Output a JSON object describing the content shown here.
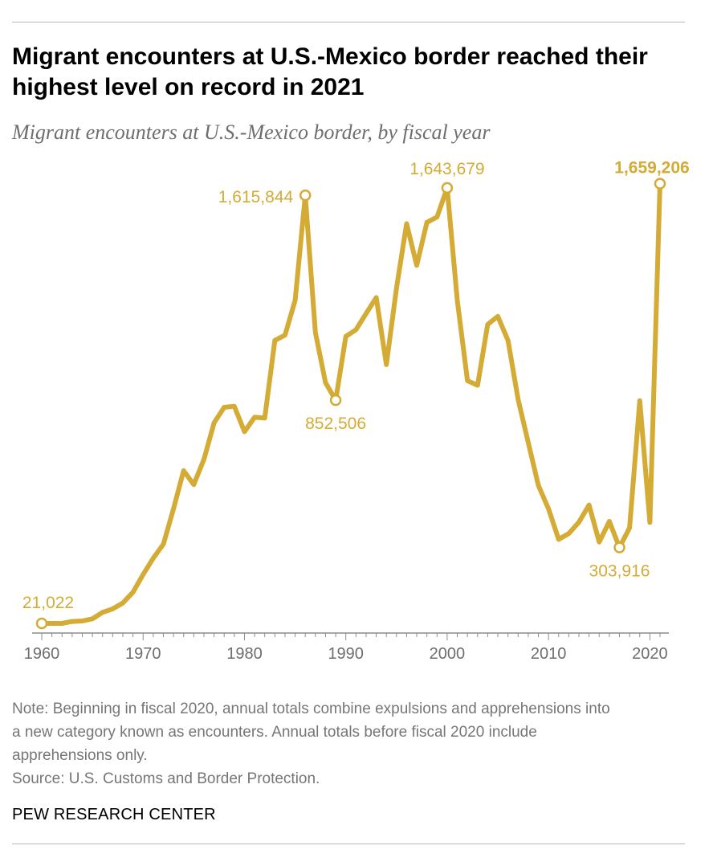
{
  "header": {
    "title": "Migrant encounters at U.S.-Mexico border reached their highest level on record in 2021",
    "subtitle": "Migrant encounters at U.S.-Mexico border, by fiscal year"
  },
  "footer": {
    "note": "Note: Beginning in fiscal 2020, annual totals combine expulsions and apprehensions into a new category known as encounters. Annual totals before fiscal 2020 include apprehensions only.",
    "source": "Source: U.S. Customs and Border Protection.",
    "brand": "PEW RESEARCH CENTER"
  },
  "colors": {
    "line": "#d4ab34",
    "axis": "#8c8c8c",
    "tick_text": "#6e6e6e"
  },
  "chart_data": {
    "type": "line",
    "title": "Migrant encounters at U.S.-Mexico border reached their highest level on record in 2021",
    "subtitle": "Migrant encounters at U.S.-Mexico border, by fiscal year",
    "xlabel": "",
    "ylabel": "",
    "xlim": [
      1960,
      2021
    ],
    "ylim": [
      0,
      1700000
    ],
    "grid": false,
    "legend": "none",
    "x_ticks": [
      1960,
      1970,
      1980,
      1990,
      2000,
      2010,
      2020
    ],
    "x_tick_labels": [
      "1960",
      "1970",
      "1980",
      "1990",
      "2000",
      "2010",
      "2020"
    ],
    "series": [
      {
        "values": [
          [
            1960,
            21022
          ],
          [
            1961,
            21000
          ],
          [
            1962,
            21000
          ],
          [
            1963,
            28000
          ],
          [
            1964,
            30000
          ],
          [
            1965,
            38000
          ],
          [
            1966,
            62000
          ],
          [
            1967,
            75000
          ],
          [
            1968,
            97000
          ],
          [
            1969,
            137000
          ],
          [
            1970,
            203000
          ],
          [
            1971,
            264000
          ],
          [
            1972,
            316000
          ],
          [
            1973,
            448000
          ],
          [
            1974,
            590000
          ],
          [
            1975,
            538000
          ],
          [
            1976,
            632000
          ],
          [
            1977,
            768000
          ],
          [
            1978,
            826000
          ],
          [
            1979,
            830000
          ],
          [
            1980,
            735000
          ],
          [
            1981,
            789000
          ],
          [
            1982,
            786000
          ],
          [
            1983,
            1075000
          ],
          [
            1984,
            1095000
          ],
          [
            1985,
            1225000
          ],
          [
            1986,
            1615844
          ],
          [
            1987,
            1105000
          ],
          [
            1988,
            918000
          ],
          [
            1989,
            852506
          ],
          [
            1990,
            1090000
          ],
          [
            1991,
            1115000
          ],
          [
            1992,
            1175000
          ],
          [
            1993,
            1235000
          ],
          [
            1994,
            985000
          ],
          [
            1995,
            1270000
          ],
          [
            1996,
            1510000
          ],
          [
            1997,
            1355000
          ],
          [
            1998,
            1515000
          ],
          [
            1999,
            1535000
          ],
          [
            2000,
            1643679
          ],
          [
            2001,
            1225000
          ],
          [
            2002,
            925000
          ],
          [
            2003,
            908000
          ],
          [
            2004,
            1135000
          ],
          [
            2005,
            1165000
          ],
          [
            2006,
            1075000
          ],
          [
            2007,
            855000
          ],
          [
            2008,
            695000
          ],
          [
            2009,
            535000
          ],
          [
            2010,
            448000
          ],
          [
            2011,
            334000
          ],
          [
            2012,
            356000
          ],
          [
            2013,
            398000
          ],
          [
            2014,
            462000
          ],
          [
            2015,
            324000
          ],
          [
            2016,
            401000
          ],
          [
            2017,
            303916
          ],
          [
            2018,
            377000
          ],
          [
            2019,
            851000
          ],
          [
            2020,
            397000
          ],
          [
            2021,
            1659206
          ]
        ]
      }
    ],
    "annotations": [
      {
        "x": 1960,
        "y": 21022,
        "label": "21,022",
        "bold": false
      },
      {
        "x": 1986,
        "y": 1615844,
        "label": "1,615,844",
        "bold": false
      },
      {
        "x": 1989,
        "y": 852506,
        "label": "852,506",
        "bold": false
      },
      {
        "x": 2000,
        "y": 1643679,
        "label": "1,643,679",
        "bold": false
      },
      {
        "x": 2017,
        "y": 303916,
        "label": "303,916",
        "bold": false
      },
      {
        "x": 2021,
        "y": 1659206,
        "label": "1,659,206",
        "bold": true
      }
    ]
  }
}
